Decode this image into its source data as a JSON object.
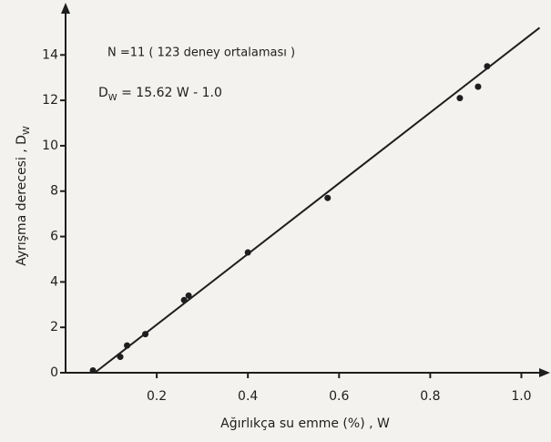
{
  "chart_data": {
    "type": "scatter",
    "annotation": "N =11 ( 123  deney   ortalaması )",
    "equation": {
      "lhs": "D",
      "sub": "W",
      "rhs": " = 15.62 W - 1.0"
    },
    "xlabel": "Ağırlıkça   su   emme (%) ,   W",
    "ylabel": {
      "main": "Ayrışma    derecesi , D",
      "sub": "W"
    },
    "x": [
      0.06,
      0.12,
      0.135,
      0.175,
      0.26,
      0.27,
      0.4,
      0.575,
      0.865,
      0.905,
      0.925
    ],
    "values": [
      0.1,
      0.7,
      1.2,
      1.7,
      3.2,
      3.4,
      5.3,
      7.7,
      12.1,
      12.6,
      13.5
    ],
    "fit_line": {
      "x": [
        0.064,
        1.04
      ],
      "values": [
        0.0,
        15.2
      ]
    },
    "color": "#1e1e1e",
    "xlim": [
      0,
      1.055
    ],
    "ylim": [
      0,
      16.3
    ],
    "xticks": [
      0.2,
      0.4,
      0.6,
      0.8,
      {
        "value": 1,
        "label": "1.0"
      }
    ],
    "yticks": [
      0,
      2,
      4,
      6,
      8,
      10,
      12,
      14
    ]
  }
}
